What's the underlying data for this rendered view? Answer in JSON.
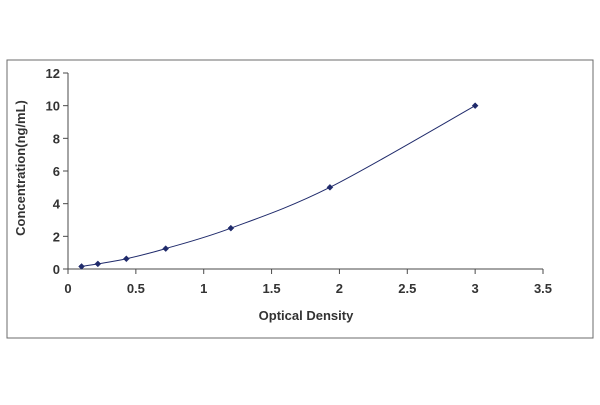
{
  "chart_data": {
    "type": "scatter",
    "title": "",
    "xlabel": "Optical Density",
    "ylabel": "Concentration(ng/mL)",
    "xlim": [
      0,
      3.5
    ],
    "ylim": [
      0,
      12
    ],
    "x_ticks": [
      "0",
      "0.5",
      "1",
      "1.5",
      "2",
      "2.5",
      "3",
      "3.5"
    ],
    "y_ticks": [
      "0",
      "2",
      "4",
      "6",
      "8",
      "10",
      "12"
    ],
    "grid": false,
    "legend": "none",
    "series": [
      {
        "x": [
          0.1,
          0.22,
          0.43,
          0.72,
          1.2,
          1.93,
          3.0
        ],
        "y": [
          0.156,
          0.312,
          0.625,
          1.25,
          2.5,
          5.0,
          10.0
        ],
        "marker": "diamond",
        "fitted_curve": true
      }
    ],
    "colors": {
      "series": "#1f2a6b",
      "axis": "#4a4a4a",
      "frame": "#6b6b6b"
    }
  }
}
